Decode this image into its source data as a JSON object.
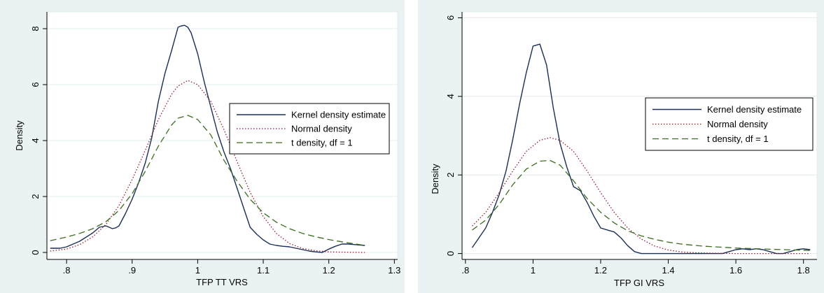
{
  "colors": {
    "background": "#eaf2f3",
    "plot_bg": "#ffffff",
    "grid": "#e3ecee",
    "kernel": "#1a2e5a",
    "normal": "#9b1b2b",
    "t": "#3a6e1e"
  },
  "chart_data": [
    {
      "type": "line",
      "xlabel": "TFP TT VRS",
      "ylabel": "Density",
      "xlim": [
        0.77,
        1.305
      ],
      "ylim": [
        -0.25,
        8.6
      ],
      "xticks": [
        0.8,
        0.9,
        1.0,
        1.1,
        1.2,
        1.3
      ],
      "xtick_labels": [
        ".8",
        ".9",
        "1",
        "1.1",
        "1.2",
        "1.3"
      ],
      "yticks": [
        0,
        2,
        4,
        6,
        8
      ],
      "ytick_labels": [
        "0",
        "2",
        "4",
        "6",
        "8"
      ],
      "grid": true,
      "legend_position": "right",
      "series": [
        {
          "name": "Kernel density estimate",
          "style": "solid",
          "x": [
            0.775,
            0.79,
            0.8,
            0.81,
            0.82,
            0.83,
            0.84,
            0.85,
            0.86,
            0.865,
            0.87,
            0.875,
            0.88,
            0.89,
            0.9,
            0.91,
            0.92,
            0.93,
            0.94,
            0.95,
            0.96,
            0.97,
            0.975,
            0.98,
            0.985,
            0.99,
            1.0,
            1.01,
            1.02,
            1.03,
            1.04,
            1.05,
            1.06,
            1.07,
            1.08,
            1.09,
            1.1,
            1.11,
            1.12,
            1.13,
            1.14,
            1.15,
            1.16,
            1.17,
            1.18,
            1.19,
            1.2,
            1.21,
            1.22,
            1.23,
            1.24,
            1.255
          ],
          "y": [
            0.15,
            0.15,
            0.2,
            0.3,
            0.4,
            0.55,
            0.7,
            0.9,
            0.95,
            0.9,
            0.85,
            0.88,
            0.95,
            1.4,
            1.9,
            2.5,
            3.2,
            4.1,
            5.4,
            6.4,
            7.2,
            8.05,
            8.1,
            8.12,
            8.05,
            7.85,
            7.1,
            6.1,
            5.2,
            4.3,
            3.6,
            3.0,
            2.3,
            1.6,
            0.9,
            0.65,
            0.45,
            0.3,
            0.25,
            0.22,
            0.2,
            0.15,
            0.1,
            0.05,
            0.02,
            0.0,
            0.12,
            0.22,
            0.3,
            0.3,
            0.28,
            0.25
          ]
        },
        {
          "name": "Normal density",
          "style": "dotted",
          "x": [
            0.775,
            0.8,
            0.82,
            0.84,
            0.86,
            0.88,
            0.9,
            0.92,
            0.94,
            0.96,
            0.97,
            0.985,
            1.0,
            1.02,
            1.04,
            1.06,
            1.08,
            1.1,
            1.12,
            1.14,
            1.16,
            1.18,
            1.2,
            1.225,
            1.255
          ],
          "y": [
            0.05,
            0.12,
            0.28,
            0.56,
            1.0,
            1.68,
            2.6,
            3.65,
            4.75,
            5.65,
            5.95,
            6.15,
            6.0,
            5.4,
            4.4,
            3.25,
            2.15,
            1.28,
            0.68,
            0.32,
            0.14,
            0.06,
            0.02,
            0.01,
            0.0
          ]
        },
        {
          "name": "t density, df = 1",
          "style": "dashed",
          "x": [
            0.775,
            0.8,
            0.82,
            0.84,
            0.86,
            0.88,
            0.9,
            0.92,
            0.94,
            0.96,
            0.97,
            0.985,
            1.0,
            1.02,
            1.04,
            1.06,
            1.08,
            1.1,
            1.12,
            1.14,
            1.16,
            1.18,
            1.2,
            1.225,
            1.255
          ],
          "y": [
            0.42,
            0.55,
            0.68,
            0.85,
            1.1,
            1.5,
            2.1,
            2.9,
            3.8,
            4.55,
            4.8,
            4.9,
            4.75,
            4.2,
            3.3,
            2.55,
            1.9,
            1.42,
            1.08,
            0.85,
            0.68,
            0.56,
            0.46,
            0.36,
            0.25
          ]
        }
      ]
    },
    {
      "type": "line",
      "xlabel": "TFP GI VRS",
      "ylabel": "Density",
      "xlim": [
        0.79,
        1.84
      ],
      "ylim": [
        -0.15,
        6.15
      ],
      "xticks": [
        0.8,
        1.0,
        1.2,
        1.4,
        1.6,
        1.8
      ],
      "xtick_labels": [
        ".8",
        "1",
        "1.2",
        "1.4",
        "1.6",
        "1.8"
      ],
      "yticks": [
        0,
        2,
        4,
        6
      ],
      "ytick_labels": [
        "0",
        "2",
        "4",
        "6"
      ],
      "grid": true,
      "legend_position": "right",
      "series": [
        {
          "name": "Kernel density estimate",
          "style": "solid",
          "x": [
            0.82,
            0.84,
            0.86,
            0.88,
            0.9,
            0.92,
            0.94,
            0.96,
            0.98,
            1.0,
            1.02,
            1.04,
            1.06,
            1.08,
            1.1,
            1.12,
            1.14,
            1.16,
            1.18,
            1.2,
            1.22,
            1.24,
            1.26,
            1.28,
            1.3,
            1.32,
            1.34,
            1.4,
            1.5,
            1.56,
            1.58,
            1.6,
            1.62,
            1.64,
            1.66,
            1.68,
            1.7,
            1.72,
            1.74,
            1.76,
            1.78,
            1.8,
            1.82
          ],
          "y": [
            0.15,
            0.4,
            0.65,
            1.05,
            1.5,
            2.1,
            2.9,
            3.8,
            4.6,
            5.28,
            5.33,
            4.8,
            3.7,
            2.8,
            2.2,
            1.7,
            1.6,
            1.3,
            0.95,
            0.65,
            0.6,
            0.55,
            0.4,
            0.2,
            0.05,
            0.0,
            0.0,
            0.0,
            0.0,
            0.0,
            0.05,
            0.1,
            0.12,
            0.1,
            0.12,
            0.1,
            0.05,
            0.0,
            0.0,
            0.05,
            0.1,
            0.12,
            0.1
          ]
        },
        {
          "name": "Normal density",
          "style": "dotted",
          "x": [
            0.82,
            0.86,
            0.9,
            0.94,
            0.98,
            1.02,
            1.05,
            1.08,
            1.12,
            1.16,
            1.2,
            1.24,
            1.28,
            1.32,
            1.36,
            1.4,
            1.44,
            1.48,
            1.52,
            1.6,
            1.7,
            1.82
          ],
          "y": [
            0.7,
            1.05,
            1.55,
            2.1,
            2.6,
            2.88,
            2.95,
            2.88,
            2.6,
            2.1,
            1.55,
            1.05,
            0.65,
            0.37,
            0.19,
            0.09,
            0.04,
            0.02,
            0.01,
            0.0,
            0.0,
            0.0
          ]
        },
        {
          "name": "t density, df = 1",
          "style": "dashed",
          "x": [
            0.82,
            0.86,
            0.9,
            0.94,
            0.98,
            1.02,
            1.05,
            1.08,
            1.12,
            1.16,
            1.2,
            1.24,
            1.28,
            1.32,
            1.36,
            1.4,
            1.44,
            1.5,
            1.6,
            1.7,
            1.82
          ],
          "y": [
            0.6,
            0.85,
            1.25,
            1.75,
            2.15,
            2.35,
            2.37,
            2.25,
            1.85,
            1.4,
            1.05,
            0.78,
            0.58,
            0.45,
            0.36,
            0.29,
            0.24,
            0.19,
            0.14,
            0.11,
            0.08
          ]
        }
      ]
    }
  ]
}
